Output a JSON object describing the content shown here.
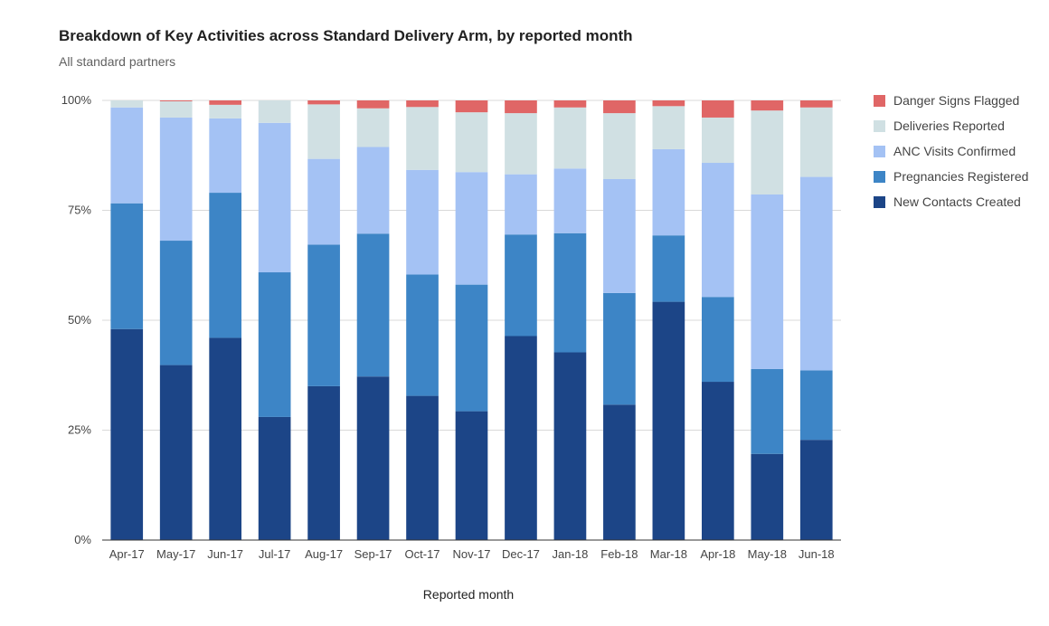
{
  "chart_data": {
    "type": "bar",
    "stacked": true,
    "percent_stacked": true,
    "title": "Breakdown of Key Activities across Standard Delivery Arm, by reported month",
    "subtitle": "All standard partners",
    "xlabel": "Reported month",
    "ylabel": "",
    "ylim": [
      0,
      100
    ],
    "yticks": [
      "0%",
      "25%",
      "50%",
      "75%",
      "100%"
    ],
    "ytick_values": [
      0,
      25,
      50,
      75,
      100
    ],
    "grid": true,
    "legend_position": "right",
    "categories": [
      "Apr-17",
      "May-17",
      "Jun-17",
      "Jul-17",
      "Aug-17",
      "Sep-17",
      "Oct-17",
      "Nov-17",
      "Dec-17",
      "Jan-18",
      "Feb-18",
      "Mar-18",
      "Apr-18",
      "May-18",
      "Jun-18"
    ],
    "series": [
      {
        "name": "New Contacts Created",
        "color": "#1c4587",
        "values": [
          48.0,
          39.8,
          46.0,
          28.0,
          35.0,
          37.2,
          32.8,
          29.3,
          46.4,
          42.7,
          30.8,
          54.2,
          36.0,
          19.6,
          22.8
        ]
      },
      {
        "name": "Pregnancies Registered",
        "color": "#3d85c6",
        "values": [
          28.6,
          28.3,
          33.0,
          32.9,
          32.2,
          32.5,
          27.6,
          28.8,
          23.1,
          27.1,
          25.4,
          15.1,
          19.3,
          19.3,
          15.8
        ]
      },
      {
        "name": "ANC Visits Confirmed",
        "color": "#a4c2f4",
        "values": [
          21.8,
          28.0,
          16.9,
          34.0,
          19.5,
          19.7,
          23.8,
          25.6,
          13.7,
          14.7,
          25.9,
          19.6,
          30.5,
          39.7,
          44.0
        ]
      },
      {
        "name": "Deliveries Reported",
        "color": "#d0e0e3",
        "values": [
          1.6,
          3.7,
          3.1,
          5.1,
          12.4,
          8.8,
          14.3,
          13.6,
          13.9,
          13.9,
          15.0,
          9.8,
          10.3,
          19.1,
          15.8
        ]
      },
      {
        "name": "Danger Signs Flagged",
        "color": "#e06666",
        "values": [
          0.0,
          0.2,
          1.0,
          0.0,
          0.9,
          1.8,
          1.5,
          2.7,
          2.9,
          1.6,
          2.9,
          1.3,
          3.9,
          2.3,
          1.6
        ]
      }
    ]
  }
}
